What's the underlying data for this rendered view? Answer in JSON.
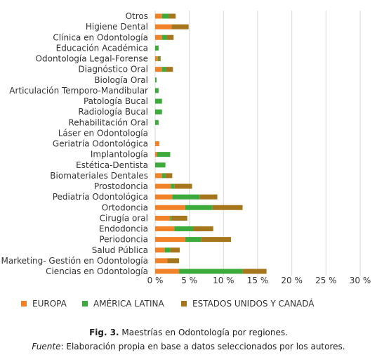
{
  "chart_data": {
    "type": "bar",
    "orientation": "horizontal",
    "stacked": true,
    "categories": [
      "Otros",
      "Higiene Dental",
      "Clínica en Odontología",
      "Educación Académica",
      "Odontología Legal-Forense",
      "Diagnóstico Oral",
      "Biología Oral",
      "Articulación Temporo-Mandibular",
      "Patología Bucal",
      "Radiología Bucal",
      "Rehabilitación Oral",
      "Láser en Odontología",
      "Geriatría Odontológica",
      "Implantología",
      "Estética-Dentista",
      "Biomateriales Dentales",
      "Prostodoncia",
      "Pediatría Odontológica",
      "Ortodoncia",
      "Cirugía oral",
      "Endodoncia",
      "Periodoncia",
      "Salud Pública",
      "Marketing- Gestión en Odontología",
      "Ciencias en Odontología"
    ],
    "series": [
      {
        "name": "EUROPA",
        "color": "#f28228",
        "values": [
          1.0,
          2.4,
          1.0,
          0,
          0.4,
          1.0,
          0,
          0,
          0,
          0,
          0,
          0,
          0.6,
          0.3,
          0,
          1.0,
          2.3,
          2.5,
          4.4,
          2.2,
          2.8,
          4.4,
          1.4,
          1.8,
          3.5
        ]
      },
      {
        "name": "AMÉRICA LATINA",
        "color": "#3cab3c",
        "values": [
          1.0,
          0,
          0.7,
          0.5,
          0.2,
          0.6,
          0.2,
          0.5,
          1.0,
          1.0,
          0.5,
          0,
          0,
          1.9,
          1.5,
          0.5,
          0.5,
          4.0,
          4.0,
          0.2,
          2.8,
          2.3,
          0.8,
          0,
          9.3
        ]
      },
      {
        "name": "ESTADOS UNIDOS Y CANADÁ",
        "color": "#a6761d",
        "values": [
          1.0,
          2.5,
          1.0,
          0,
          0.2,
          1.0,
          0,
          0,
          0,
          0,
          0,
          0,
          0,
          0,
          0,
          1.0,
          2.6,
          2.6,
          4.4,
          2.3,
          2.9,
          4.4,
          1.4,
          1.7,
          3.5
        ]
      }
    ],
    "xaxis": {
      "ticks": [
        0,
        5,
        10,
        15,
        20,
        25,
        30
      ],
      "tick_labels": [
        "0 %",
        "5 %",
        "10 %",
        "15 %",
        "20 %",
        "25 %",
        "30 %"
      ],
      "xlim": [
        0,
        30
      ]
    },
    "grid": "vertical",
    "legend_position": "bottom"
  },
  "caption": {
    "fig_label": "Fig. 3.",
    "fig_text": " Maestrías en Odontología por regiones.",
    "source_label": "Fuente",
    "source_text": ": Elaboración propia en base a datos seleccionados por los autores."
  }
}
